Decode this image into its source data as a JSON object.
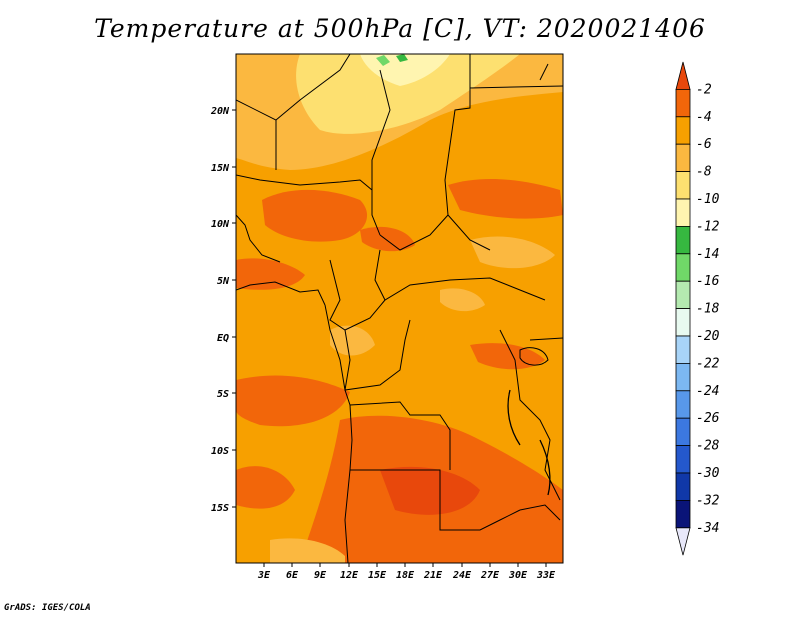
{
  "title": "Temperature at 500hPa [C], VT: 2020021406",
  "credit": "GrADS: IGES/COLA",
  "map": {
    "latitude_labels": [
      "20N",
      "15N",
      "10N",
      "5N",
      "EQ",
      "5S",
      "10S",
      "15S"
    ],
    "longitude_labels": [
      "3E",
      "6E",
      "9E",
      "12E",
      "15E",
      "18E",
      "21E",
      "24E",
      "27E",
      "30E",
      "33E"
    ]
  },
  "colorbar": {
    "levels": [
      "-2",
      "-4",
      "-6",
      "-8",
      "-10",
      "-12",
      "-14",
      "-16",
      "-18",
      "-20",
      "-22",
      "-24",
      "-26",
      "-28",
      "-30",
      "-32",
      "-34"
    ],
    "colors": [
      "#e8480c",
      "#f2660a",
      "#f7a000",
      "#fbb840",
      "#fde070",
      "#fff5b0",
      "#36b840",
      "#70d868",
      "#b4eab0",
      "#e8faf0",
      "#a8d4f8",
      "#7cb8f2",
      "#5898ea",
      "#3c78e0",
      "#2458cc",
      "#1038a8",
      "#0a1478",
      "#e8e8fa"
    ]
  }
}
